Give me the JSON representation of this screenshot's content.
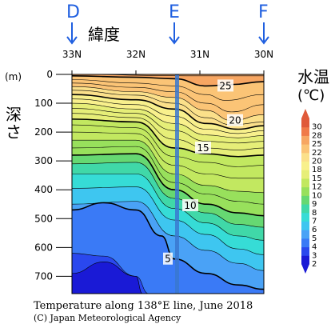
{
  "chart_data": {
    "type": "heatmap",
    "title": "Temperature along 138°E line, June 2018",
    "credit": "(C) Japan Meteorological Agency",
    "xlabel": "緯度",
    "ylabel": "深さ",
    "yunit": "(m)",
    "colorbar_title": "水温",
    "colorbar_unit": "(℃)",
    "x_ticks": [
      "33N",
      "32N",
      "31N",
      "30N"
    ],
    "x_tick_values": [
      33,
      32,
      31,
      30
    ],
    "xlim": [
      33.0,
      30.0
    ],
    "y_ticks": [
      0,
      100,
      200,
      300,
      400,
      500,
      600,
      700
    ],
    "ylim": [
      0,
      760
    ],
    "stations": [
      {
        "name": "D",
        "lat": 33.0
      },
      {
        "name": "E",
        "lat": 31.4
      },
      {
        "name": "F",
        "lat": 30.0
      }
    ],
    "colorbar_levels": [
      2,
      3,
      4,
      5,
      6,
      7,
      8,
      9,
      10,
      12,
      15,
      18,
      20,
      22,
      25,
      28,
      30
    ],
    "colorbar_colors": [
      "#1a1ad6",
      "#2a48ee",
      "#3a7af6",
      "#4aa2f6",
      "#3ec6f0",
      "#36dcd6",
      "#40d8a8",
      "#66d872",
      "#98e05c",
      "#c2e860",
      "#e6ee78",
      "#f8f08c",
      "#fbe08a",
      "#fbc476",
      "#f7a662",
      "#f07a48",
      "#e05a3a"
    ],
    "contour_labels": [
      {
        "value": "25",
        "lat": 30.6,
        "depth": 40
      },
      {
        "value": "20",
        "lat": 30.45,
        "depth": 160
      },
      {
        "value": "15",
        "lat": 30.95,
        "depth": 255
      },
      {
        "value": "10",
        "lat": 31.15,
        "depth": 455
      },
      {
        "value": "5",
        "lat": 31.5,
        "depth": 640
      }
    ],
    "isotherms": [
      {
        "value": 28,
        "points": [
          [
            33.0,
            0
          ],
          [
            31.2,
            5
          ],
          [
            30.0,
            5
          ]
        ]
      },
      {
        "value": 25,
        "points": [
          [
            33.0,
            5
          ],
          [
            32.0,
            10
          ],
          [
            31.4,
            15
          ],
          [
            30.9,
            40
          ],
          [
            30.5,
            35
          ],
          [
            30.0,
            25
          ]
        ]
      },
      {
        "value": 24,
        "points": [
          [
            33.0,
            18
          ],
          [
            32.0,
            30
          ],
          [
            31.4,
            40
          ],
          [
            30.9,
            70
          ],
          [
            30.6,
            90
          ],
          [
            30.0,
            70
          ]
        ]
      },
      {
        "value": 23,
        "points": [
          [
            33.0,
            30
          ],
          [
            32.0,
            45
          ],
          [
            31.4,
            60
          ],
          [
            30.9,
            100
          ],
          [
            30.5,
            130
          ],
          [
            30.0,
            105
          ]
        ]
      },
      {
        "value": 22,
        "points": [
          [
            33.0,
            42
          ],
          [
            32.0,
            60
          ],
          [
            31.4,
            80
          ],
          [
            30.9,
            125
          ],
          [
            30.5,
            160
          ],
          [
            30.0,
            140
          ]
        ]
      },
      {
        "value": 21,
        "points": [
          [
            33.0,
            55
          ],
          [
            32.0,
            72
          ],
          [
            31.4,
            100
          ],
          [
            30.9,
            150
          ],
          [
            30.5,
            175
          ],
          [
            30.0,
            165
          ]
        ]
      },
      {
        "value": 20,
        "points": [
          [
            33.0,
            70
          ],
          [
            32.0,
            88
          ],
          [
            31.4,
            120
          ],
          [
            30.9,
            170
          ],
          [
            30.4,
            190
          ],
          [
            30.0,
            178
          ]
        ]
      },
      {
        "value": 19,
        "points": [
          [
            33.0,
            85
          ],
          [
            32.0,
            105
          ],
          [
            31.4,
            145
          ],
          [
            30.9,
            190
          ],
          [
            30.4,
            205
          ],
          [
            30.0,
            195
          ]
        ]
      },
      {
        "value": 18,
        "points": [
          [
            33.0,
            100
          ],
          [
            32.0,
            120
          ],
          [
            31.4,
            170
          ],
          [
            30.9,
            210
          ],
          [
            30.4,
            220
          ],
          [
            30.0,
            212
          ]
        ]
      },
      {
        "value": 17,
        "points": [
          [
            33.0,
            118
          ],
          [
            32.0,
            135
          ],
          [
            31.4,
            195
          ],
          [
            30.9,
            232
          ],
          [
            30.4,
            238
          ],
          [
            30.0,
            232
          ]
        ]
      },
      {
        "value": 16,
        "points": [
          [
            33.0,
            135
          ],
          [
            32.0,
            150
          ],
          [
            31.4,
            225
          ],
          [
            30.9,
            255
          ],
          [
            30.4,
            262
          ],
          [
            30.0,
            255
          ]
        ]
      },
      {
        "value": 15,
        "points": [
          [
            33.0,
            155
          ],
          [
            32.0,
            165
          ],
          [
            31.4,
            255
          ],
          [
            30.9,
            275
          ],
          [
            30.4,
            285
          ],
          [
            30.0,
            280
          ]
        ]
      },
      {
        "value": 14,
        "points": [
          [
            33.0,
            175
          ],
          [
            32.0,
            185
          ],
          [
            31.4,
            285
          ],
          [
            30.9,
            305
          ],
          [
            30.4,
            320
          ],
          [
            30.0,
            315
          ]
        ]
      },
      {
        "value": 13,
        "points": [
          [
            33.0,
            200
          ],
          [
            32.0,
            205
          ],
          [
            31.4,
            315
          ],
          [
            30.9,
            345
          ],
          [
            30.4,
            360
          ],
          [
            30.0,
            360
          ]
        ]
      },
      {
        "value": 12,
        "points": [
          [
            33.0,
            228
          ],
          [
            32.0,
            228
          ],
          [
            31.4,
            345
          ],
          [
            30.9,
            385
          ],
          [
            30.4,
            405
          ],
          [
            30.0,
            410
          ]
        ]
      },
      {
        "value": 11,
        "points": [
          [
            33.0,
            255
          ],
          [
            32.0,
            250
          ],
          [
            31.4,
            375
          ],
          [
            30.9,
            415
          ],
          [
            30.4,
            440
          ],
          [
            30.0,
            450
          ]
        ]
      },
      {
        "value": 10,
        "points": [
          [
            33.0,
            280
          ],
          [
            32.0,
            275
          ],
          [
            31.4,
            400
          ],
          [
            30.9,
            450
          ],
          [
            30.4,
            480
          ],
          [
            30.0,
            490
          ]
        ]
      },
      {
        "value": 9,
        "points": [
          [
            33.0,
            310
          ],
          [
            32.0,
            305
          ],
          [
            31.4,
            430
          ],
          [
            30.9,
            480
          ],
          [
            30.4,
            520
          ],
          [
            30.0,
            530
          ]
        ]
      },
      {
        "value": 8,
        "points": [
          [
            33.0,
            345
          ],
          [
            32.0,
            345
          ],
          [
            31.4,
            465
          ],
          [
            30.9,
            515
          ],
          [
            30.4,
            560
          ],
          [
            30.0,
            575
          ]
        ]
      },
      {
        "value": 7,
        "points": [
          [
            33.0,
            395
          ],
          [
            32.0,
            390
          ],
          [
            31.4,
            505
          ],
          [
            30.9,
            555
          ],
          [
            30.4,
            605
          ],
          [
            30.0,
            625
          ]
        ]
      },
      {
        "value": 6,
        "points": [
          [
            33.0,
            450
          ],
          [
            32.0,
            440
          ],
          [
            31.4,
            560
          ],
          [
            30.9,
            610
          ],
          [
            30.4,
            655
          ],
          [
            30.0,
            680
          ]
        ]
      },
      {
        "value": 5,
        "points": [
          [
            33.0,
            470
          ],
          [
            32.5,
            445
          ],
          [
            32.0,
            470
          ],
          [
            31.6,
            560
          ],
          [
            31.4,
            640
          ],
          [
            30.9,
            690
          ],
          [
            30.4,
            730
          ],
          [
            30.0,
            745
          ]
        ]
      },
      {
        "value": 4,
        "points": [
          [
            33.0,
            620
          ],
          [
            32.5,
            630
          ],
          [
            32.0,
            700
          ],
          [
            31.8,
            760
          ]
        ]
      },
      {
        "value": 3,
        "points": [
          [
            33.0,
            690
          ],
          [
            32.5,
            650
          ],
          [
            32.0,
            700
          ],
          [
            31.9,
            760
          ]
        ]
      }
    ]
  }
}
